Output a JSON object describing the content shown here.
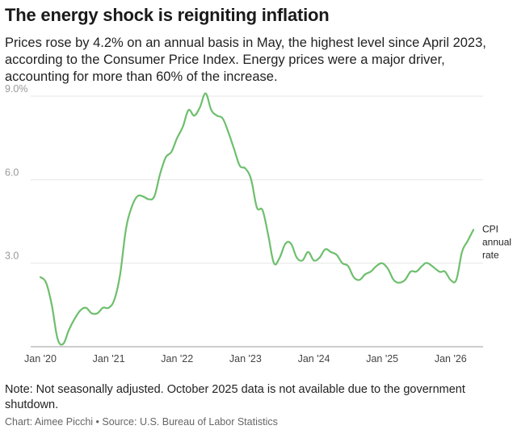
{
  "header": {
    "title": "The energy shock is reigniting inflation",
    "subtitle": "Prices rose by 4.2% on an annual basis in May, the highest level since April 2023, according to the Consumer Price Index. Energy prices were a major driver, accounting for more than 60% of the increase."
  },
  "footer": {
    "note": "Note: Not seasonally adjusted. October 2025 data is not available due to the government shutdown.",
    "credit": "Chart: Aimee Picchi • Source: U.S. Bureau of Labor Statistics"
  },
  "colors": {
    "line": "#6dbf6d",
    "grid": "#e6e6e6",
    "axis": "#999999"
  },
  "chart_data": {
    "type": "line",
    "title": "",
    "xlabel": "",
    "ylabel": "",
    "ylim": [
      0,
      9.0
    ],
    "xlim": [
      "2020-01",
      "2026-05"
    ],
    "yticks": [
      3.0,
      6.0,
      9.0
    ],
    "ytick_labels": [
      "3.0",
      "6.0",
      "9.0%"
    ],
    "xticks": [
      "2020-01",
      "2021-01",
      "2022-01",
      "2023-01",
      "2024-01",
      "2025-01",
      "2026-01"
    ],
    "xtick_labels": [
      "Jan '20",
      "Jan '21",
      "Jan '22",
      "Jan '23",
      "Jan '24",
      "Jan '25",
      "Jan '26"
    ],
    "grid": true,
    "series": [
      {
        "name": "CPI annual rate",
        "label_lines": [
          "CPI",
          "annual",
          "rate"
        ],
        "points": [
          [
            "2020-01",
            2.5
          ],
          [
            "2020-02",
            2.3
          ],
          [
            "2020-03",
            1.5
          ],
          [
            "2020-04",
            0.3
          ],
          [
            "2020-05",
            0.1
          ],
          [
            "2020-06",
            0.6
          ],
          [
            "2020-07",
            1.0
          ],
          [
            "2020-08",
            1.3
          ],
          [
            "2020-09",
            1.4
          ],
          [
            "2020-10",
            1.2
          ],
          [
            "2020-11",
            1.2
          ],
          [
            "2020-12",
            1.4
          ],
          [
            "2021-01",
            1.4
          ],
          [
            "2021-02",
            1.7
          ],
          [
            "2021-03",
            2.6
          ],
          [
            "2021-04",
            4.2
          ],
          [
            "2021-05",
            5.0
          ],
          [
            "2021-06",
            5.4
          ],
          [
            "2021-07",
            5.4
          ],
          [
            "2021-08",
            5.3
          ],
          [
            "2021-09",
            5.4
          ],
          [
            "2021-10",
            6.2
          ],
          [
            "2021-11",
            6.8
          ],
          [
            "2021-12",
            7.0
          ],
          [
            "2022-01",
            7.5
          ],
          [
            "2022-02",
            7.9
          ],
          [
            "2022-03",
            8.5
          ],
          [
            "2022-04",
            8.3
          ],
          [
            "2022-05",
            8.6
          ],
          [
            "2022-06",
            9.1
          ],
          [
            "2022-07",
            8.5
          ],
          [
            "2022-08",
            8.3
          ],
          [
            "2022-09",
            8.2
          ],
          [
            "2022-10",
            7.7
          ],
          [
            "2022-11",
            7.1
          ],
          [
            "2022-12",
            6.5
          ],
          [
            "2023-01",
            6.4
          ],
          [
            "2023-02",
            6.0
          ],
          [
            "2023-03",
            5.0
          ],
          [
            "2023-04",
            4.9
          ],
          [
            "2023-05",
            4.0
          ],
          [
            "2023-06",
            3.0
          ],
          [
            "2023-07",
            3.2
          ],
          [
            "2023-08",
            3.7
          ],
          [
            "2023-09",
            3.7
          ],
          [
            "2023-10",
            3.2
          ],
          [
            "2023-11",
            3.1
          ],
          [
            "2023-12",
            3.4
          ],
          [
            "2024-01",
            3.1
          ],
          [
            "2024-02",
            3.2
          ],
          [
            "2024-03",
            3.5
          ],
          [
            "2024-04",
            3.4
          ],
          [
            "2024-05",
            3.3
          ],
          [
            "2024-06",
            3.0
          ],
          [
            "2024-07",
            2.9
          ],
          [
            "2024-08",
            2.5
          ],
          [
            "2024-09",
            2.4
          ],
          [
            "2024-10",
            2.6
          ],
          [
            "2024-11",
            2.7
          ],
          [
            "2024-12",
            2.9
          ],
          [
            "2025-01",
            3.0
          ],
          [
            "2025-02",
            2.8
          ],
          [
            "2025-03",
            2.4
          ],
          [
            "2025-04",
            2.3
          ],
          [
            "2025-05",
            2.4
          ],
          [
            "2025-06",
            2.7
          ],
          [
            "2025-07",
            2.7
          ],
          [
            "2025-08",
            2.9
          ],
          [
            "2025-09",
            3.0
          ],
          [
            "2025-11",
            2.7
          ],
          [
            "2025-12",
            2.7
          ],
          [
            "2026-01",
            2.4
          ],
          [
            "2026-02",
            2.4
          ],
          [
            "2026-03",
            3.4
          ],
          [
            "2026-04",
            3.8
          ],
          [
            "2026-05",
            4.2
          ]
        ]
      }
    ]
  }
}
